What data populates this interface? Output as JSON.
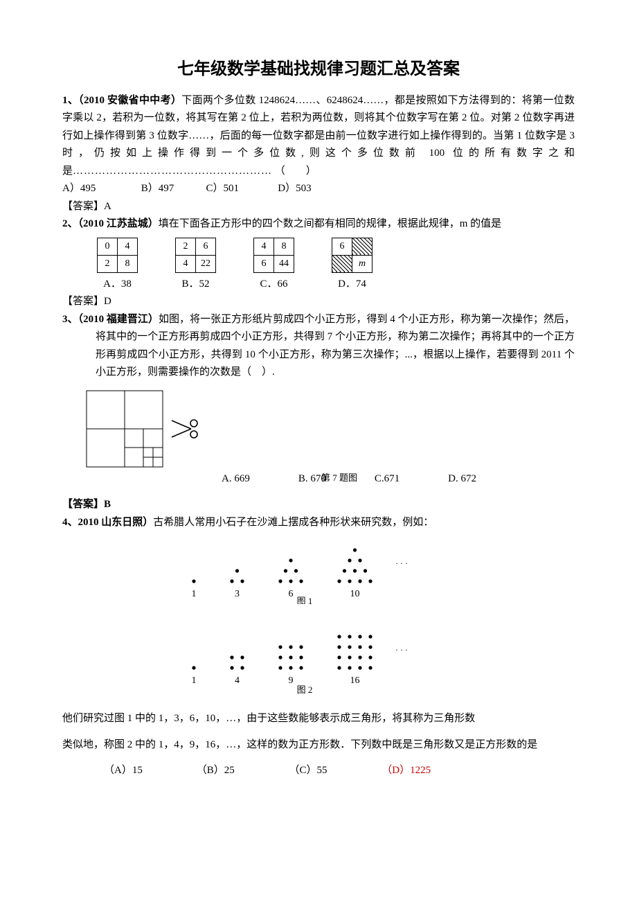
{
  "title": "七年级数学基础找规律习题汇总及答案",
  "q1": {
    "prefix": "1、（2010 安徽省中中考）",
    "text": "下面两个多位数 1248624……、6248624……，都是按照如下方法得到的：将第一位数字乘以 2，若积为一位数，将其写在第 2 位上，若积为两位数，则将其个位数字写在第 2 位。对第 2 位数字再进行如上操作得到第 3 位数字……，后面的每一位数字都是由前一位数字进行如上操作得到的。当第 1 位数字是 3 时，仍按如上操作得到一个多位数,则这个多位数前 100 位的所有数字之和是",
    "dots": "………………………………………………",
    "paren": "（　　）",
    "opts": [
      "A）495",
      "B）497",
      "C）501",
      "D）503"
    ],
    "answer": "【答案】A"
  },
  "q2": {
    "prefix": "2、（2010 江苏盐城）",
    "text": "填在下面各正方形中的四个数之间都有相同的规律，根据此规律，m 的值是",
    "boxes": [
      {
        "cells": [
          [
            "0",
            "4"
          ],
          [
            "2",
            "8"
          ]
        ],
        "label": "A．38",
        "hatch": []
      },
      {
        "cells": [
          [
            "2",
            "6"
          ],
          [
            "4",
            "22"
          ]
        ],
        "label": "B．52",
        "hatch": []
      },
      {
        "cells": [
          [
            "4",
            "8"
          ],
          [
            "6",
            "44"
          ]
        ],
        "label": "C．66",
        "hatch": []
      },
      {
        "cells": [
          [
            "6",
            ""
          ],
          [
            "",
            "m"
          ]
        ],
        "label": "D．74",
        "hatch": [
          [
            0,
            1
          ],
          [
            1,
            0
          ]
        ]
      }
    ],
    "answer": "【答案】D",
    "m_style": {
      "font_style": "italic"
    }
  },
  "q3": {
    "prefix": "3、（2010 福建晋江）",
    "text": "如图，将一张正方形纸片剪成四个小正方形，得到 4 个小正方形，称为第一次操作；然后，将其中的一个正方形再剪成四个小正方形，共得到 7 个小正方形，称为第二次操作；再将其中的一个正方形再剪成四个小正方形，共得到 10 个小正方形，称为第三次操作；...，根据以上操作，若要得到 2011 个小正方形，则需要操作的次数是（　）.",
    "caption": "第 7 题图",
    "opts": [
      "A. 669",
      "B. 670",
      "C.671",
      "D. 672"
    ],
    "answer": "【答案】B",
    "svg": {
      "outer": 110,
      "stroke": "#000",
      "scissor_color": "#000"
    }
  },
  "q4": {
    "prefix": "4、2010 山东日照）",
    "text": "古希腊人常用小石子在沙滩上摆成各种形状来研究数，例如：",
    "fig1": {
      "labels": [
        "1",
        "3",
        "6",
        "10"
      ],
      "caption": "图 1",
      "ellipsis": "· · ·",
      "dot_color": "#000"
    },
    "fig2": {
      "labels": [
        "1",
        "4",
        "9",
        "16"
      ],
      "caption": "图 2",
      "ellipsis": "· · ·",
      "dot_color": "#000"
    },
    "p1": "他们研究过图 1 中的 1，3，6，10，…，由于这些数能够表示成三角形，将其称为三角形数",
    "p2": "类似地，称图 2 中的 1，4，9，16，…，这样的数为正方形数．下列数中既是三角形数又是正方形数的是",
    "opts": [
      "（A）15",
      "（B）25",
      "（C）55",
      "（D）1225"
    ],
    "correct_color": "#cc0000"
  }
}
